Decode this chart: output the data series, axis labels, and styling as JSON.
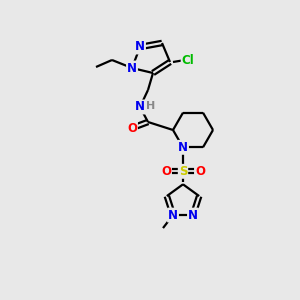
{
  "background_color": "#e8e8e8",
  "atom_colors": {
    "N": "#0000ee",
    "O": "#ff0000",
    "S": "#cccc00",
    "Cl": "#00bb00",
    "C": "#000000",
    "H": "#888888"
  },
  "lw": 1.6,
  "fontsize": 8.5
}
